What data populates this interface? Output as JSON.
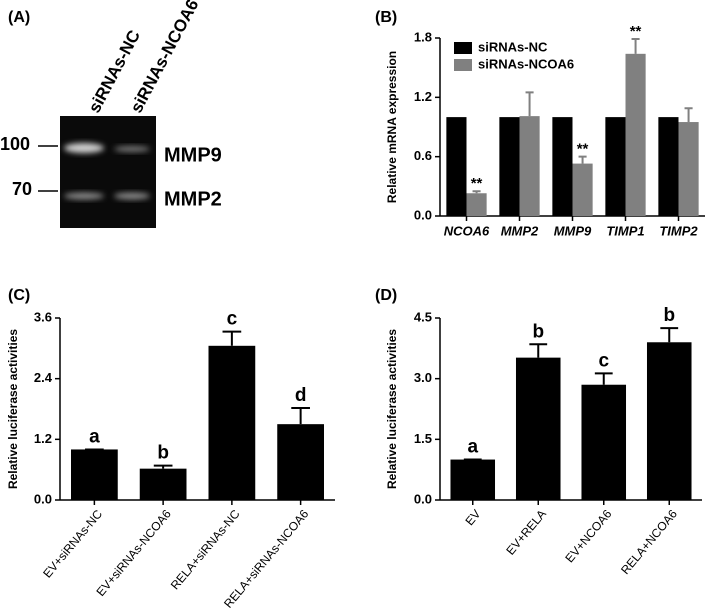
{
  "gel": {
    "panel": "(A)",
    "lanes": [
      "siRNAs-NC",
      "siRNAs-NCOA6"
    ],
    "markers": [
      "100",
      "70"
    ],
    "bands": [
      "MMP9",
      "MMP2"
    ]
  },
  "chart_data": [
    {
      "type": "bar",
      "panel": "(B)",
      "ylabel": "Relative mRNA expression",
      "categories": [
        "NCOA6",
        "MMP2",
        "MMP9",
        "TIMP1",
        "TIMP2"
      ],
      "series": [
        {
          "name": "siRNAs-NC",
          "color": "#000000",
          "values": [
            1,
            1,
            1,
            1,
            1
          ]
        },
        {
          "name": "siRNAs-NCOA6",
          "color": "#808080",
          "values": [
            0.23,
            1.01,
            0.53,
            1.64,
            0.95
          ],
          "errors": [
            0.02,
            0.24,
            0.07,
            0.15,
            0.14
          ],
          "annotations": [
            "**",
            null,
            "**",
            "**",
            null
          ]
        }
      ],
      "ylim": [
        0,
        1.8
      ],
      "yticks": [
        {
          "value": 0,
          "label": "0.0"
        },
        0.6,
        1.2,
        1.8
      ],
      "legend": "upper left"
    },
    {
      "type": "bar",
      "panel": "(C)",
      "ylabel": "Relative luciferase activities",
      "categories": [
        "EV+siRNAs-NC",
        "EV+siRNAs-NCOA6",
        "RELA+siRNAs-NC",
        "RELA+siRNAs-NCOA6"
      ],
      "values": [
        1.0,
        0.62,
        3.05,
        1.5
      ],
      "errors": [
        0,
        0.06,
        0.28,
        0.32
      ],
      "annotations": [
        "a",
        "b",
        "c",
        "d"
      ],
      "color": "#000000",
      "ylim": [
        0,
        3.6
      ],
      "yticks": [
        {
          "value": 0,
          "label": "0.0"
        },
        1.2,
        2.4,
        3.6
      ]
    },
    {
      "type": "bar",
      "panel": "(D)",
      "ylabel": "Relative luciferase activities",
      "categories": [
        "EV",
        "EV+RELA",
        "EV+NCOA6",
        "RELA+NCOA6"
      ],
      "values": [
        1.0,
        3.52,
        2.85,
        3.9
      ],
      "errors": [
        0,
        0.33,
        0.28,
        0.35
      ],
      "annotations": [
        "a",
        "b",
        "c",
        "b"
      ],
      "color": "#000000",
      "ylim": [
        0,
        4.5
      ],
      "yticks": [
        {
          "value": 0,
          "label": "0.0"
        },
        1.5,
        {
          "value": 3,
          "label": "3.0"
        },
        4.5
      ]
    }
  ]
}
